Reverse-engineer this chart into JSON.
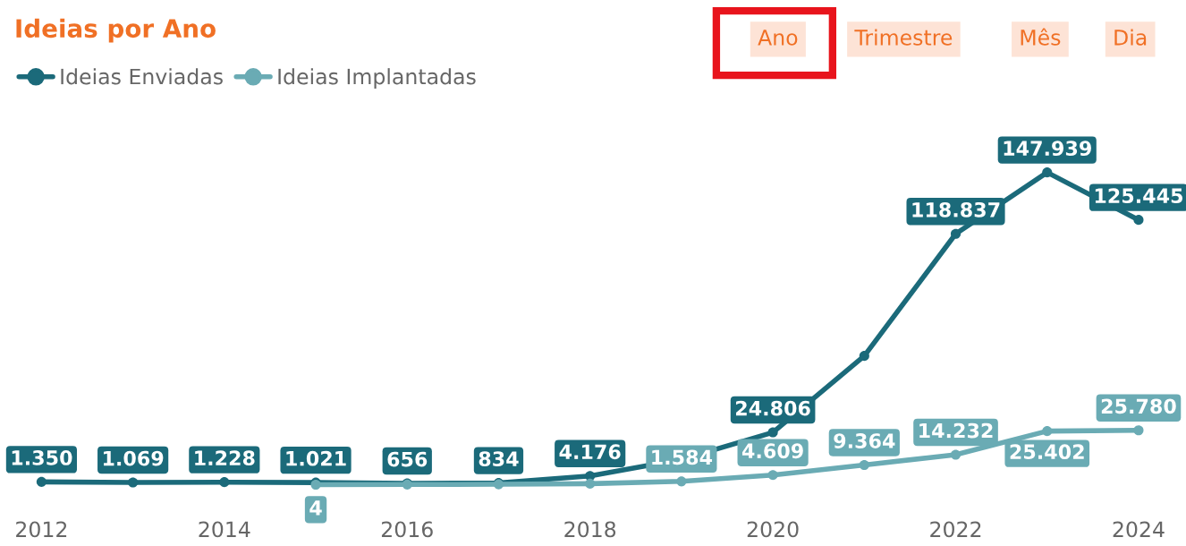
{
  "chart_data": {
    "type": "line",
    "title": "Ideias por Ano",
    "x": [
      2012,
      2013,
      2014,
      2015,
      2016,
      2017,
      2018,
      2019,
      2020,
      2021,
      2022,
      2023,
      2024
    ],
    "xlim": [
      2012,
      2024
    ],
    "xticks": [
      2012,
      2014,
      2016,
      2018,
      2020,
      2022,
      2024
    ],
    "series": [
      {
        "name": "Ideias Enviadas",
        "color": "#1b6a7a",
        "values": [
          1350,
          1069,
          1228,
          1021,
          656,
          834,
          4176,
          12000,
          24806,
          61000,
          118837,
          147939,
          125445
        ],
        "value_labels": [
          "1.350",
          "1.069",
          "1.228",
          "1.021",
          "656",
          "834",
          "4.176",
          null,
          "24.806",
          null,
          "118.837",
          "147.939",
          "125.445"
        ]
      },
      {
        "name": "Ideias Implantadas",
        "color": "#6aabb4",
        "values": [
          null,
          null,
          null,
          4,
          100,
          200,
          500,
          1584,
          4609,
          9364,
          14232,
          25402,
          25780
        ],
        "value_labels": [
          null,
          null,
          null,
          "4",
          null,
          null,
          null,
          "1.584",
          "4.609",
          "9.364",
          "14.232",
          "25.402",
          "25.780"
        ]
      }
    ],
    "marker": "circle",
    "line_style": "solid",
    "grid": false,
    "legend": "top left",
    "tick_labels": "x",
    "annotations": [
      "Ano",
      "Trimestre",
      "Mês",
      "Dia"
    ]
  }
}
